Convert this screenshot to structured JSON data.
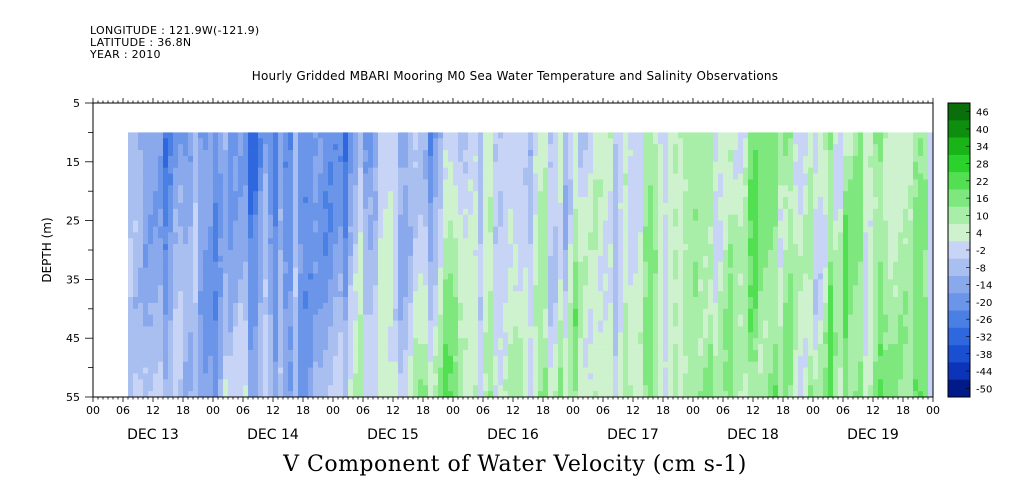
{
  "header": {
    "longitude": "LONGITUDE : 121.9W(-121.9)",
    "latitude": "LATITUDE : 36.8N",
    "year": "YEAR : 2010"
  },
  "chart_data": {
    "type": "heatmap",
    "title": "Hourly Gridded MBARI Mooring M0 Sea Water Temperature and Salinity Observations",
    "xlabel": "V Component of Water Velocity (cm s-1)",
    "ylabel": "DEPTH (m)",
    "ylim": [
      55,
      5
    ],
    "y_ticks": [
      "5",
      "15",
      "25",
      "35",
      "45",
      "55"
    ],
    "x_hour_ticks": [
      "00",
      "06",
      "12",
      "18",
      "00",
      "06",
      "12",
      "18",
      "00",
      "06",
      "12",
      "18",
      "00",
      "06",
      "12",
      "18",
      "00",
      "06",
      "12",
      "18",
      "00",
      "06",
      "12",
      "18",
      "00",
      "06",
      "12",
      "18",
      "00"
    ],
    "x_day_labels": [
      "DEC 13",
      "DEC 14",
      "DEC 15",
      "DEC 16",
      "DEC 17",
      "DEC 18",
      "DEC 19"
    ],
    "colorbar_labels": [
      "46",
      "40",
      "34",
      "28",
      "22",
      "16",
      "10",
      "4",
      "-2",
      "-8",
      "-14",
      "-20",
      "-26",
      "-32",
      "-38",
      "-44",
      "-50"
    ],
    "colorbar_range": [
      -50,
      52
    ],
    "data_depth_range": [
      10,
      55
    ],
    "data_start_hour": 7,
    "daily_pattern_v": [
      {
        "day": "DEC 13",
        "surface": -12,
        "deep": -4
      },
      {
        "day": "DEC 14",
        "surface": -22,
        "deep": -10
      },
      {
        "day": "DEC 15",
        "surface": -8,
        "deep": 8
      },
      {
        "day": "DEC 16",
        "surface": -2,
        "deep": 12
      },
      {
        "day": "DEC 17",
        "surface": 8,
        "deep": 10
      },
      {
        "day": "DEC 18",
        "surface": 10,
        "deep": 12
      },
      {
        "day": "DEC 19",
        "surface": 6,
        "deep": 14
      }
    ],
    "grid": false,
    "legend": "colorbar-right"
  }
}
